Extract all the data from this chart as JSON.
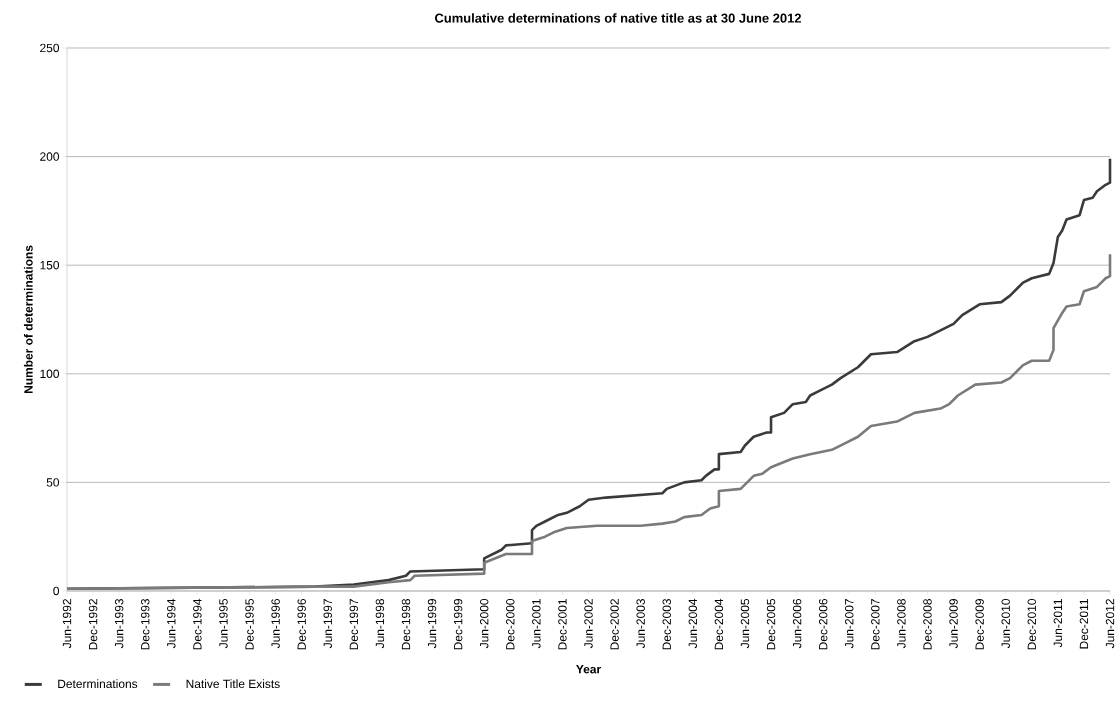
{
  "chart_data": {
    "type": "line",
    "title": "Cumulative determinations of native title as at 30 June 2012",
    "xlabel": "Year",
    "ylabel": "Number of determinations",
    "xlim": [
      "1992-06",
      "2012-06"
    ],
    "ylim": [
      0,
      250
    ],
    "yticks": [
      0,
      50,
      100,
      150,
      200,
      250
    ],
    "grid": "y",
    "legend": "bottom left",
    "xticks": [
      {
        "value": "1992-06",
        "label": "Jun-1992"
      },
      {
        "value": "1992-12",
        "label": "Dec-1992"
      },
      {
        "value": "1993-06",
        "label": "Jun-1993"
      },
      {
        "value": "1993-12",
        "label": "Dec-1993"
      },
      {
        "value": "1994-06",
        "label": "Jun-1994"
      },
      {
        "value": "1994-12",
        "label": "Dec-1994"
      },
      {
        "value": "1995-06",
        "label": "Jun-1995"
      },
      {
        "value": "1995-12",
        "label": "Dec-1995"
      },
      {
        "value": "1996-06",
        "label": "Jun-1996"
      },
      {
        "value": "1996-12",
        "label": "Dec-1996"
      },
      {
        "value": "1997-06",
        "label": "Jun-1997"
      },
      {
        "value": "1997-12",
        "label": "Dec-1997"
      },
      {
        "value": "1998-06",
        "label": "Jun-1998"
      },
      {
        "value": "1998-12",
        "label": "Dec-1998"
      },
      {
        "value": "1999-06",
        "label": "Jun-1999"
      },
      {
        "value": "1999-12",
        "label": "Dec-1999"
      },
      {
        "value": "2000-06",
        "label": "Jun-2000"
      },
      {
        "value": "2000-12",
        "label": "Dec-2000"
      },
      {
        "value": "2001-06",
        "label": "Jun-2001"
      },
      {
        "value": "2001-12",
        "label": "Dec-2001"
      },
      {
        "value": "2002-06",
        "label": "Jun-2002"
      },
      {
        "value": "2002-12",
        "label": "Dec-2002"
      },
      {
        "value": "2003-06",
        "label": "Jun-2003"
      },
      {
        "value": "2003-12",
        "label": "Dec-2003"
      },
      {
        "value": "2004-06",
        "label": "Jun-2004"
      },
      {
        "value": "2004-12",
        "label": "Dec-2004"
      },
      {
        "value": "2005-06",
        "label": "Jun-2005"
      },
      {
        "value": "2005-12",
        "label": "Dec-2005"
      },
      {
        "value": "2006-06",
        "label": "Jun-2006"
      },
      {
        "value": "2006-12",
        "label": "Dec-2006"
      },
      {
        "value": "2007-06",
        "label": "Jun-2007"
      },
      {
        "value": "2007-12",
        "label": "Dec-2007"
      },
      {
        "value": "2008-06",
        "label": "Jun-2008"
      },
      {
        "value": "2008-12",
        "label": "Dec-2008"
      },
      {
        "value": "2009-06",
        "label": "Jun-2009"
      },
      {
        "value": "2009-12",
        "label": "Dec-2009"
      },
      {
        "value": "2010-06",
        "label": "Jun-2010"
      },
      {
        "value": "2010-12",
        "label": "Dec-2010"
      },
      {
        "value": "2011-06",
        "label": "Jun-2011"
      },
      {
        "value": "2011-12",
        "label": "Dec-2011"
      },
      {
        "value": "2012-06",
        "label": "Jun-2012"
      }
    ],
    "series": [
      {
        "name": "Determinations",
        "color": "#3a3a3a",
        "x": [
          "1992-06",
          "1997-03",
          "1997-12",
          "1998-08",
          "1998-12",
          "1999-01",
          "2000-06",
          "2000-06",
          "2000-10",
          "2000-11",
          "2001-05",
          "2001-05",
          "2001-06",
          "2001-08",
          "2001-11",
          "2002-01",
          "2002-04",
          "2002-06",
          "2002-10",
          "2003-11",
          "2003-12",
          "2004-04",
          "2004-08",
          "2004-09",
          "2004-11",
          "2004-12",
          "2004-12",
          "2005-05",
          "2005-06",
          "2005-08",
          "2005-11",
          "2005-12",
          "2005-12",
          "2006-03",
          "2006-05",
          "2006-08",
          "2006-09",
          "2006-11",
          "2007-02",
          "2007-04",
          "2007-08",
          "2007-11",
          "2008-05",
          "2008-09",
          "2008-12",
          "2009-03",
          "2009-06",
          "2009-08",
          "2009-12",
          "2010-05",
          "2010-07",
          "2010-10",
          "2010-12",
          "2011-04",
          "2011-05",
          "2011-06",
          "2011-07",
          "2011-08",
          "2011-11",
          "2011-12",
          "2012-02",
          "2012-03",
          "2012-05",
          "2012-06",
          "2012-06"
        ],
        "values": [
          1,
          2,
          3,
          5,
          7,
          9,
          10,
          15,
          19,
          21,
          22,
          28,
          30,
          32,
          35,
          36,
          39,
          42,
          43,
          45,
          47,
          50,
          51,
          53,
          56,
          56,
          63,
          64,
          67,
          71,
          73,
          73,
          80,
          82,
          86,
          87,
          90,
          92,
          95,
          98,
          103,
          109,
          110,
          115,
          117,
          120,
          123,
          127,
          132,
          133,
          136,
          142,
          144,
          146,
          151,
          163,
          166,
          171,
          173,
          180,
          181,
          184,
          187,
          188,
          199
        ]
      },
      {
        "name": "Native Title Exists",
        "color": "#7a7a7a",
        "x": [
          "1992-06",
          "1997-03",
          "1997-12",
          "1998-08",
          "1999-01",
          "1999-02",
          "2000-06",
          "2000-06",
          "2000-11",
          "2001-05",
          "2001-05",
          "2001-08",
          "2001-10",
          "2002-01",
          "2002-08",
          "2003-06",
          "2003-11",
          "2004-02",
          "2004-04",
          "2004-08",
          "2004-10",
          "2004-12",
          "2004-12",
          "2005-05",
          "2005-06",
          "2005-08",
          "2005-10",
          "2005-12",
          "2006-05",
          "2006-09",
          "2007-02",
          "2007-05",
          "2007-08",
          "2007-11",
          "2008-05",
          "2008-09",
          "2009-03",
          "2009-05",
          "2009-07",
          "2009-11",
          "2010-05",
          "2010-07",
          "2010-10",
          "2010-12",
          "2011-04",
          "2011-05",
          "2011-05",
          "2011-07",
          "2011-08",
          "2011-11",
          "2011-12",
          "2012-03",
          "2012-05",
          "2012-06",
          "2012-06"
        ],
        "values": [
          1,
          2,
          2,
          4,
          5,
          7,
          8,
          13,
          17,
          17,
          23,
          25,
          27,
          29,
          30,
          30,
          31,
          32,
          34,
          35,
          38,
          39,
          46,
          47,
          49,
          53,
          54,
          57,
          61,
          63,
          65,
          68,
          71,
          76,
          78,
          82,
          84,
          86,
          90,
          95,
          96,
          98,
          104,
          106,
          106,
          111,
          121,
          128,
          131,
          132,
          138,
          140,
          144,
          145,
          155
        ]
      }
    ]
  }
}
